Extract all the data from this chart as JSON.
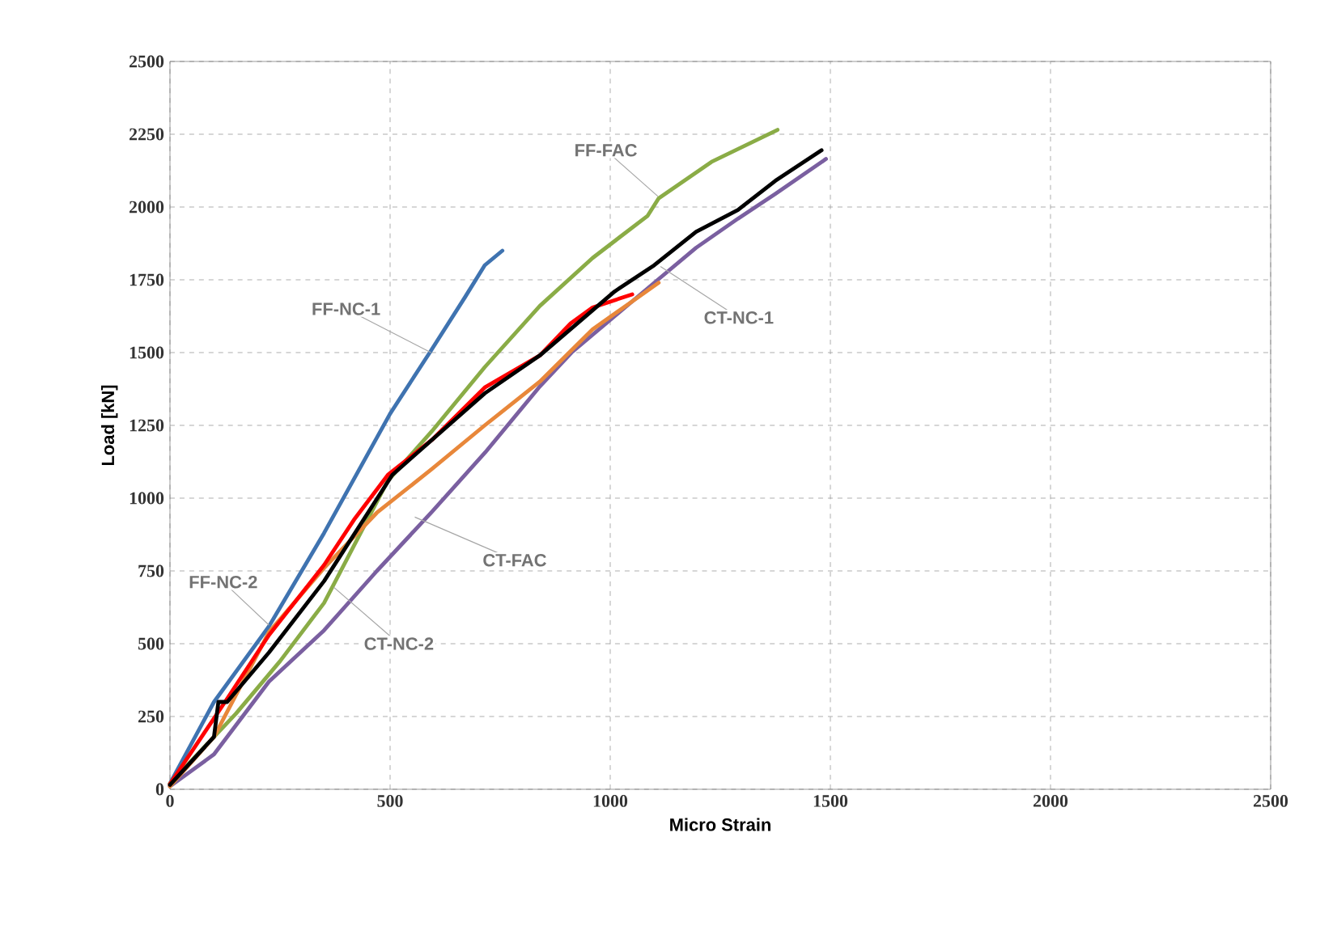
{
  "chart_data": {
    "type": "line",
    "xlabel": "Micro Strain",
    "ylabel": "Load [kN]",
    "xlim": [
      0,
      2500
    ],
    "ylim": [
      0,
      2500
    ],
    "xticks": [
      0,
      500,
      1000,
      1500,
      2000,
      2500
    ],
    "yticks": [
      0,
      250,
      500,
      750,
      1000,
      1250,
      1500,
      1750,
      2000,
      2250,
      2500
    ],
    "grid": true,
    "line_style": "solid",
    "annotations": [
      {
        "text": "FF-NC-1",
        "x": 593,
        "y": 1500
      },
      {
        "text": "FF-FAC",
        "x": 1108,
        "y": 2037
      },
      {
        "text": "CT-NC-1",
        "x": 1114,
        "y": 1796
      },
      {
        "text": "CT-FAC",
        "x": 556,
        "y": 935
      },
      {
        "text": "FF-NC-2",
        "x": 225,
        "y": 564
      },
      {
        "text": "CT-NC-2",
        "x": 372,
        "y": 694
      }
    ],
    "series": [
      {
        "color": "#3f73b0",
        "x": [
          0,
          100,
          225,
          350,
          500,
          590,
          670,
          715,
          755
        ],
        "values": [
          20,
          300,
          560,
          880,
          1290,
          1500,
          1690,
          1800,
          1850
        ]
      },
      {
        "color": "#8aac46",
        "x": [
          0,
          150,
          250,
          350,
          495,
          595,
          715,
          840,
          960,
          1085,
          1110,
          1230,
          1380
        ],
        "values": [
          20,
          260,
          440,
          640,
          1060,
          1230,
          1450,
          1660,
          1825,
          1970,
          2030,
          2155,
          2265
        ]
      },
      {
        "color": "#7a5fa0",
        "x": [
          0,
          100,
          225,
          350,
          470,
          595,
          716,
          838,
          912,
          1108,
          1195,
          1290,
          1375,
          1490
        ],
        "values": [
          10,
          120,
          370,
          546,
          750,
          953,
          1157,
          1380,
          1500,
          1750,
          1860,
          1960,
          2045,
          2165
        ]
      },
      {
        "color": "#e8873a",
        "x": [
          0,
          100,
          225,
          350,
          470,
          595,
          715,
          840,
          960,
          1110
        ],
        "values": [
          10,
          180,
          540,
          760,
          950,
          1100,
          1250,
          1400,
          1580,
          1740
        ]
      },
      {
        "color": "#ff0000",
        "x": [
          0,
          125,
          225,
          350,
          420,
          495,
          595,
          715,
          840,
          910,
          960,
          1050
        ],
        "values": [
          18,
          300,
          530,
          770,
          930,
          1080,
          1200,
          1380,
          1490,
          1600,
          1655,
          1700
        ]
      },
      {
        "color": "#000000",
        "x": [
          0,
          100,
          110,
          130,
          225,
          350,
          505,
          715,
          840,
          1010,
          1100,
          1195,
          1290,
          1375,
          1480
        ],
        "values": [
          15,
          180,
          300,
          300,
          470,
          715,
          1080,
          1360,
          1490,
          1710,
          1800,
          1915,
          1990,
          2090,
          2195
        ]
      }
    ]
  }
}
